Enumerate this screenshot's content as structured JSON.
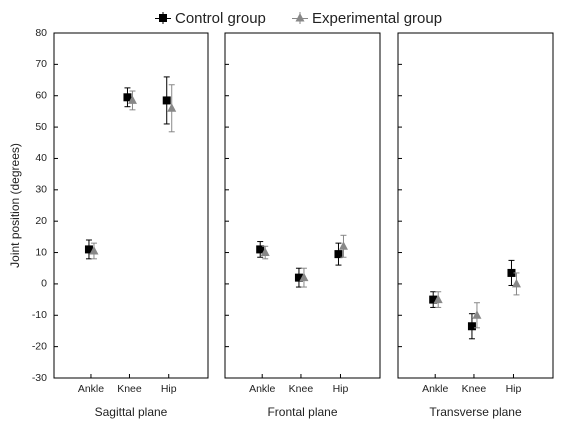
{
  "chart_data": {
    "type": "scatter",
    "ylabel": "Joint position (degrees)",
    "ylim": [
      -30,
      80
    ],
    "yticks": [
      -30,
      -20,
      -10,
      0,
      10,
      20,
      30,
      40,
      50,
      60,
      70,
      80
    ],
    "grid": false,
    "legend": {
      "placement": "top-center",
      "entries": [
        {
          "name": "Control group",
          "marker": "square",
          "color": "#000000"
        },
        {
          "name": "Experimental group",
          "marker": "triangle",
          "color": "#888888"
        }
      ]
    },
    "error_bars": true,
    "panels": [
      {
        "xlabel": "Sagittal plane",
        "categories": [
          "Ankle",
          "Knee",
          "Hip"
        ],
        "series": [
          {
            "name": "Control group",
            "values": [
              11,
              59.5,
              58.5
            ],
            "errors": [
              3,
              3,
              7.5
            ]
          },
          {
            "name": "Experimental group",
            "values": [
              10.5,
              58.5,
              56
            ],
            "errors": [
              2.5,
              3,
              7.5
            ]
          }
        ]
      },
      {
        "xlabel": "Frontal plane",
        "categories": [
          "Ankle",
          "Knee",
          "Hip"
        ],
        "series": [
          {
            "name": "Control group",
            "values": [
              11,
              2,
              9.5
            ],
            "errors": [
              2.5,
              3,
              3.5
            ]
          },
          {
            "name": "Experimental group",
            "values": [
              10,
              2,
              12
            ],
            "errors": [
              2,
              3,
              3.5
            ]
          }
        ]
      },
      {
        "xlabel": "Transverse plane",
        "categories": [
          "Ankle",
          "Knee",
          "Hip"
        ],
        "series": [
          {
            "name": "Control group",
            "values": [
              -5,
              -13.5,
              3.5
            ],
            "errors": [
              2.5,
              4,
              4
            ]
          },
          {
            "name": "Experimental group",
            "values": [
              -5,
              -10,
              0
            ],
            "errors": [
              2.5,
              4,
              3.5
            ]
          }
        ]
      }
    ]
  }
}
